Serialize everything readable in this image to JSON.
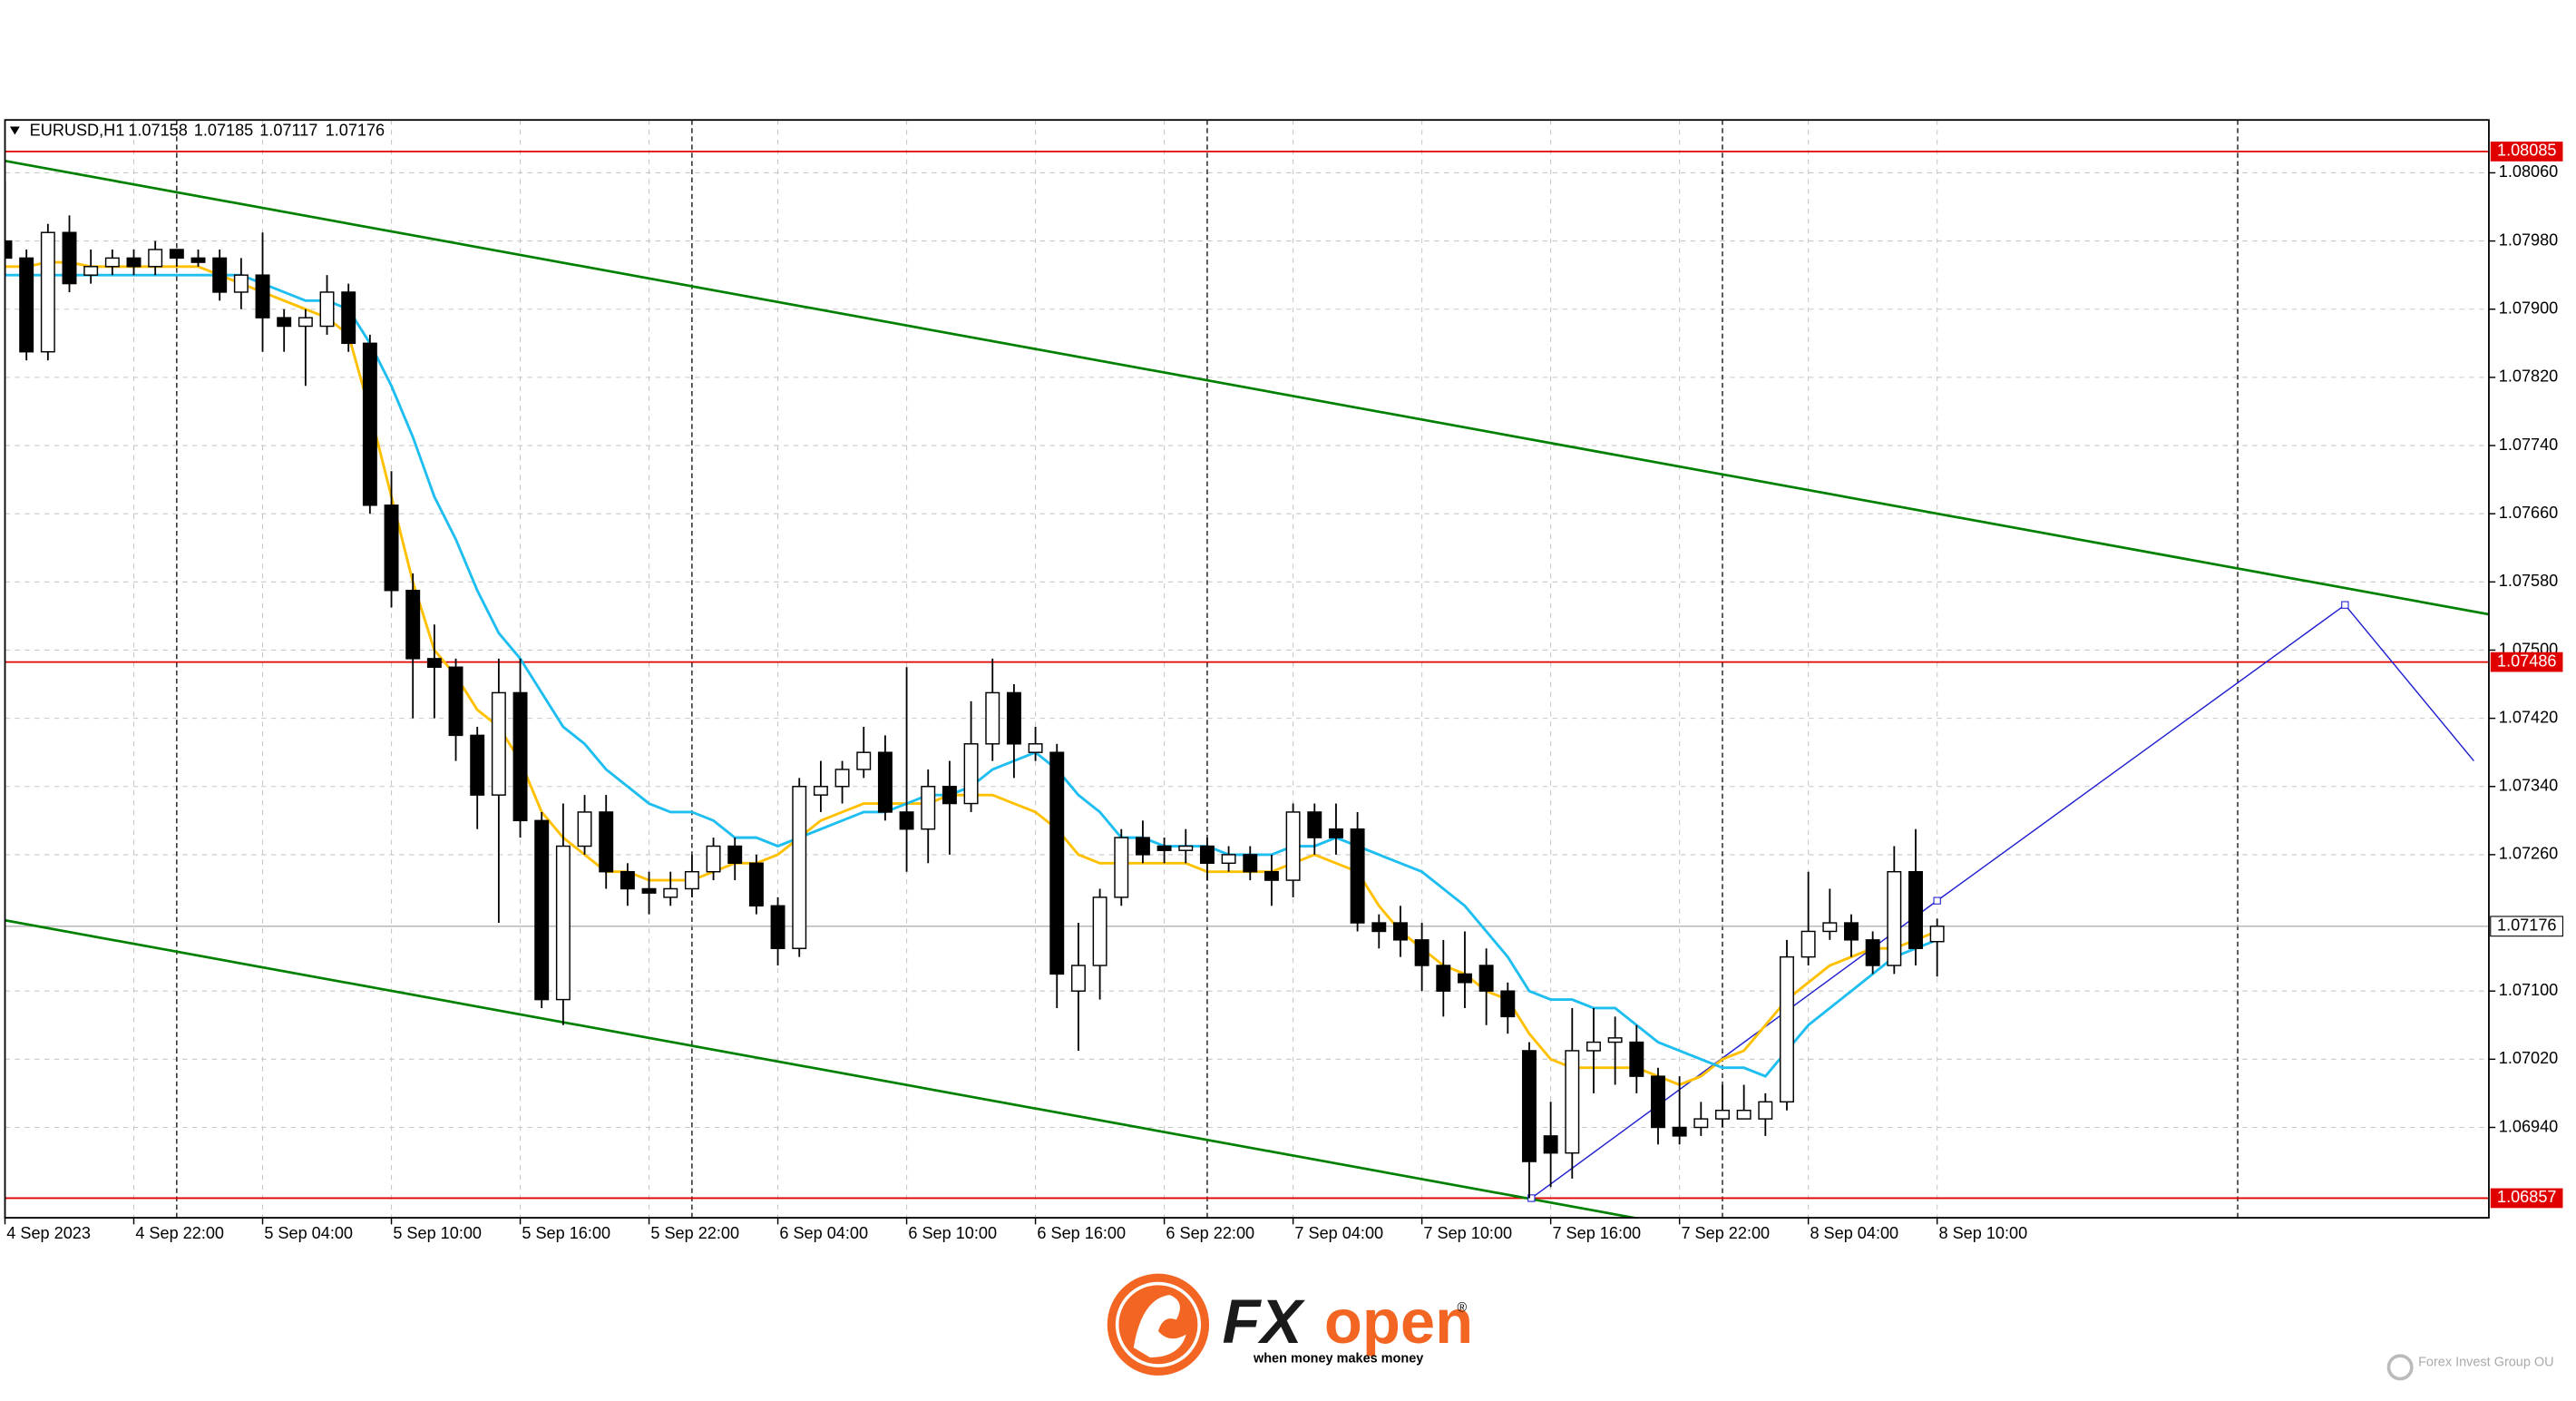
{
  "chart_data": {
    "type": "candlestick",
    "title": "EURUSD,H1",
    "header_values": [
      1.07158,
      1.07185,
      1.07117,
      1.07176
    ],
    "open": [
      1.0798,
      1.0796,
      1.0785,
      1.0799,
      1.0794,
      1.0795,
      1.0796,
      1.0795,
      1.0797,
      1.0796,
      1.0796,
      1.0792,
      1.0794,
      1.0789,
      1.0788,
      1.0788,
      1.0792,
      1.0786,
      1.0767,
      1.0757,
      1.0749,
      1.0748,
      1.074,
      1.0733,
      1.0745,
      1.073,
      1.0709,
      1.0727,
      1.0731,
      1.0724,
      1.0722,
      1.0721,
      1.0722,
      1.0724,
      1.0727,
      1.0725,
      1.072,
      1.0715,
      1.0733,
      1.0734,
      1.0736,
      1.0738,
      1.0731,
      1.0729,
      1.0734,
      1.0732,
      1.0739,
      1.0745,
      1.0738,
      1.0738,
      1.071,
      1.0713,
      1.0721,
      1.0728,
      1.0727,
      1.07265,
      1.0727,
      1.0725,
      1.0726,
      1.0724,
      1.0723,
      1.0731,
      1.0729,
      1.0729,
      1.0718,
      1.0718,
      1.0716,
      1.0713,
      1.0712,
      1.0713,
      1.071,
      1.0703,
      1.0693,
      1.0691,
      1.0703,
      1.0704,
      1.0704,
      1.07,
      1.0694,
      1.0694,
      1.0695,
      1.0695,
      1.0695,
      1.0697,
      1.0714,
      1.0717,
      1.0718,
      1.0716,
      1.0713,
      1.0724,
      1.07158
    ],
    "high": [
      1.0805,
      1.0797,
      1.08,
      1.0801,
      1.0797,
      1.0797,
      1.0797,
      1.0798,
      1.0797,
      1.0797,
      1.0797,
      1.0796,
      1.0799,
      1.079,
      1.079,
      1.0794,
      1.0793,
      1.0787,
      1.0771,
      1.0759,
      1.0753,
      1.0749,
      1.0741,
      1.0749,
      1.0749,
      1.0731,
      1.0732,
      1.0733,
      1.0733,
      1.0725,
      1.0724,
      1.0724,
      1.0726,
      1.0728,
      1.0728,
      1.0726,
      1.0721,
      1.0735,
      1.0737,
      1.0737,
      1.0741,
      1.074,
      1.0748,
      1.0736,
      1.0737,
      1.0744,
      1.0749,
      1.0746,
      1.0741,
      1.0739,
      1.0718,
      1.0722,
      1.0729,
      1.073,
      1.0728,
      1.0729,
      1.0728,
      1.0727,
      1.0727,
      1.0726,
      1.0732,
      1.0732,
      1.0732,
      1.0731,
      1.0719,
      1.072,
      1.0718,
      1.0716,
      1.0717,
      1.0715,
      1.0711,
      1.0704,
      1.0697,
      1.0708,
      1.0708,
      1.0707,
      1.0706,
      1.0701,
      1.07,
      1.0697,
      1.0699,
      1.0699,
      1.0698,
      1.0716,
      1.0724,
      1.0722,
      1.0719,
      1.0717,
      1.0727,
      1.0729,
      1.07185
    ],
    "low": [
      1.0794,
      1.0784,
      1.0784,
      1.0792,
      1.0793,
      1.0794,
      1.0794,
      1.0794,
      1.0795,
      1.0795,
      1.0791,
      1.079,
      1.0785,
      1.0785,
      1.0781,
      1.0787,
      1.0785,
      1.0766,
      1.0755,
      1.0742,
      1.0742,
      1.0737,
      1.0729,
      1.0718,
      1.0728,
      1.0708,
      1.0706,
      1.0726,
      1.0722,
      1.072,
      1.0719,
      1.072,
      1.0721,
      1.0723,
      1.0723,
      1.0719,
      1.0713,
      1.0714,
      1.0731,
      1.0732,
      1.0735,
      1.073,
      1.0724,
      1.0725,
      1.0726,
      1.0731,
      1.0737,
      1.0735,
      1.0737,
      1.0708,
      1.0703,
      1.0709,
      1.072,
      1.0725,
      1.0725,
      1.0725,
      1.0723,
      1.0724,
      1.0723,
      1.072,
      1.0721,
      1.0726,
      1.0726,
      1.0717,
      1.0715,
      1.0714,
      1.071,
      1.0707,
      1.0708,
      1.0706,
      1.0705,
      1.06857,
      1.0687,
      1.0688,
      1.0698,
      1.0699,
      1.0698,
      1.0692,
      1.0692,
      1.0693,
      1.0694,
      1.0695,
      1.0693,
      1.0696,
      1.0713,
      1.0716,
      1.0714,
      1.0712,
      1.0712,
      1.0713,
      1.07117
    ],
    "close": [
      1.0796,
      1.0785,
      1.0799,
      1.0793,
      1.0795,
      1.0796,
      1.0795,
      1.0797,
      1.0796,
      1.07955,
      1.0792,
      1.0794,
      1.0789,
      1.0788,
      1.0789,
      1.0792,
      1.0786,
      1.0767,
      1.0757,
      1.0749,
      1.0748,
      1.074,
      1.0733,
      1.0745,
      1.073,
      1.0709,
      1.0727,
      1.0731,
      1.0724,
      1.0722,
      1.07215,
      1.0722,
      1.0724,
      1.0727,
      1.0725,
      1.072,
      1.0715,
      1.0734,
      1.0734,
      1.0736,
      1.0738,
      1.0731,
      1.0729,
      1.0734,
      1.0732,
      1.0739,
      1.0745,
      1.0739,
      1.0739,
      1.0712,
      1.0713,
      1.0721,
      1.0728,
      1.0726,
      1.07265,
      1.0727,
      1.0725,
      1.0726,
      1.0724,
      1.0723,
      1.0731,
      1.0728,
      1.0728,
      1.0718,
      1.0717,
      1.0716,
      1.0713,
      1.071,
      1.0711,
      1.071,
      1.0707,
      1.069,
      1.0691,
      1.0703,
      1.0704,
      1.07045,
      1.07,
      1.0694,
      1.0693,
      1.0695,
      1.0696,
      1.0696,
      1.0697,
      1.0714,
      1.0717,
      1.0718,
      1.0716,
      1.0713,
      1.0724,
      1.0715,
      1.07176
    ],
    "bull_color": "#ffffff",
    "bear_color": "#000000",
    "series": [
      {
        "color": "#ffc000",
        "values": [
          1.0795,
          1.0795,
          1.07955,
          1.07955,
          1.0795,
          1.0795,
          1.0795,
          1.0795,
          1.0795,
          1.0795,
          1.0794,
          1.0793,
          1.0792,
          1.0791,
          1.079,
          1.0789,
          1.0787,
          1.0778,
          1.0768,
          1.0758,
          1.075,
          1.0747,
          1.0743,
          1.0741,
          1.0737,
          1.0731,
          1.0728,
          1.0726,
          1.0724,
          1.0724,
          1.0723,
          1.0723,
          1.0723,
          1.0724,
          1.0725,
          1.0725,
          1.0726,
          1.0728,
          1.073,
          1.0731,
          1.0732,
          1.0732,
          1.0732,
          1.0732,
          1.0733,
          1.0733,
          1.0733,
          1.0732,
          1.0731,
          1.0729,
          1.0726,
          1.0725,
          1.0725,
          1.0725,
          1.0725,
          1.0725,
          1.0724,
          1.0724,
          1.0724,
          1.0724,
          1.0725,
          1.0726,
          1.0725,
          1.0724,
          1.072,
          1.0717,
          1.0715,
          1.0713,
          1.0712,
          1.071,
          1.0709,
          1.0705,
          1.0702,
          1.0701,
          1.0701,
          1.0701,
          1.0701,
          1.07,
          1.0699,
          1.07,
          1.0702,
          1.0703,
          1.0706,
          1.0709,
          1.0711,
          1.0713,
          1.0714,
          1.0715,
          1.0715,
          1.0716,
          1.0717
        ]
      },
      {
        "color": "#1ebef0",
        "values": [
          1.0794,
          1.0794,
          1.0794,
          1.0794,
          1.0794,
          1.0794,
          1.0794,
          1.0794,
          1.0794,
          1.0794,
          1.0794,
          1.0794,
          1.0793,
          1.0792,
          1.0791,
          1.0791,
          1.079,
          1.0786,
          1.0781,
          1.0775,
          1.0768,
          1.0763,
          1.0757,
          1.0752,
          1.0749,
          1.0745,
          1.0741,
          1.0739,
          1.0736,
          1.0734,
          1.0732,
          1.0731,
          1.0731,
          1.073,
          1.0728,
          1.0728,
          1.0727,
          1.0728,
          1.0729,
          1.073,
          1.0731,
          1.0731,
          1.0732,
          1.0733,
          1.0733,
          1.0734,
          1.0736,
          1.0737,
          1.0738,
          1.0736,
          1.0733,
          1.0731,
          1.0728,
          1.0728,
          1.0727,
          1.0727,
          1.0727,
          1.0726,
          1.0726,
          1.0726,
          1.0727,
          1.0727,
          1.0728,
          1.0727,
          1.0726,
          1.0725,
          1.0724,
          1.0722,
          1.072,
          1.0717,
          1.0714,
          1.071,
          1.0709,
          1.0709,
          1.0708,
          1.0708,
          1.0706,
          1.0704,
          1.0703,
          1.0702,
          1.0701,
          1.0701,
          1.07,
          1.0703,
          1.0706,
          1.0708,
          1.071,
          1.0712,
          1.0714,
          1.0715,
          1.0716
        ]
      }
    ],
    "levels": [
      {
        "value": 1.08085,
        "color": "#e00000"
      },
      {
        "value": 1.07486,
        "color": "#e00000"
      },
      {
        "value": 1.06857,
        "color": "#e00000"
      }
    ],
    "trendlines": [
      {
        "color": "#008000",
        "points": [
          [
            0,
            1.08074
          ],
          [
            115.7,
            1.07542
          ]
        ]
      },
      {
        "color": "#008000",
        "points": [
          [
            0,
            1.07183
          ],
          [
            76.3,
            1.06832
          ]
        ]
      },
      {
        "color": "#2020d0",
        "points": [
          [
            71.1,
            1.06857
          ],
          [
            90,
            1.07206
          ],
          [
            109,
            1.07553
          ],
          [
            115,
            1.0737
          ]
        ]
      }
    ],
    "xlim": [
      0,
      115.7
    ],
    "ylim": [
      1.06834,
      1.08122
    ],
    "xticks": [
      {
        "value": 0,
        "label": "4 Sep 2023"
      },
      {
        "value": 6,
        "label": "4 Sep 22:00"
      },
      {
        "value": 12,
        "label": "5 Sep 04:00"
      },
      {
        "value": 18,
        "label": "5 Sep 10:00"
      },
      {
        "value": 24,
        "label": "5 Sep 16:00"
      },
      {
        "value": 30,
        "label": "5 Sep 22:00"
      },
      {
        "value": 36,
        "label": "6 Sep 04:00"
      },
      {
        "value": 42,
        "label": "6 Sep 10:00"
      },
      {
        "value": 48,
        "label": "6 Sep 16:00"
      },
      {
        "value": 54,
        "label": "6 Sep 22:00"
      },
      {
        "value": 60,
        "label": "7 Sep 04:00"
      },
      {
        "value": 66,
        "label": "7 Sep 10:00"
      },
      {
        "value": 72,
        "label": "7 Sep 16:00"
      },
      {
        "value": 78,
        "label": "7 Sep 22:00"
      },
      {
        "value": 84,
        "label": "8 Sep 04:00"
      },
      {
        "value": 90,
        "label": "8 Sep 10:00"
      }
    ],
    "yticks": [
      {
        "value": 1.0806,
        "label": "1.08060"
      },
      {
        "value": 1.0798,
        "label": "1.07980"
      },
      {
        "value": 1.079,
        "label": "1.07900"
      },
      {
        "value": 1.0782,
        "label": "1.07820"
      },
      {
        "value": 1.0774,
        "label": "1.07740"
      },
      {
        "value": 1.0766,
        "label": "1.07660"
      },
      {
        "value": 1.0758,
        "label": "1.07580"
      },
      {
        "value": 1.075,
        "label": "1.07500"
      },
      {
        "value": 1.0742,
        "label": "1.07420"
      },
      {
        "value": 1.0734,
        "label": "1.07340"
      },
      {
        "value": 1.0726,
        "label": "1.07260"
      },
      {
        "value": 1.071,
        "label": "1.07100"
      },
      {
        "value": 1.0702,
        "label": "1.07020"
      },
      {
        "value": 1.0694,
        "label": "1.06940"
      }
    ],
    "separators": [
      8,
      32,
      56,
      80,
      104
    ],
    "grid": true
  },
  "logo": {
    "fx": "FX",
    "open": "open",
    "registered": "®",
    "tagline": "when money makes money"
  },
  "footer": {
    "company": "Forex Invest Group OU"
  }
}
